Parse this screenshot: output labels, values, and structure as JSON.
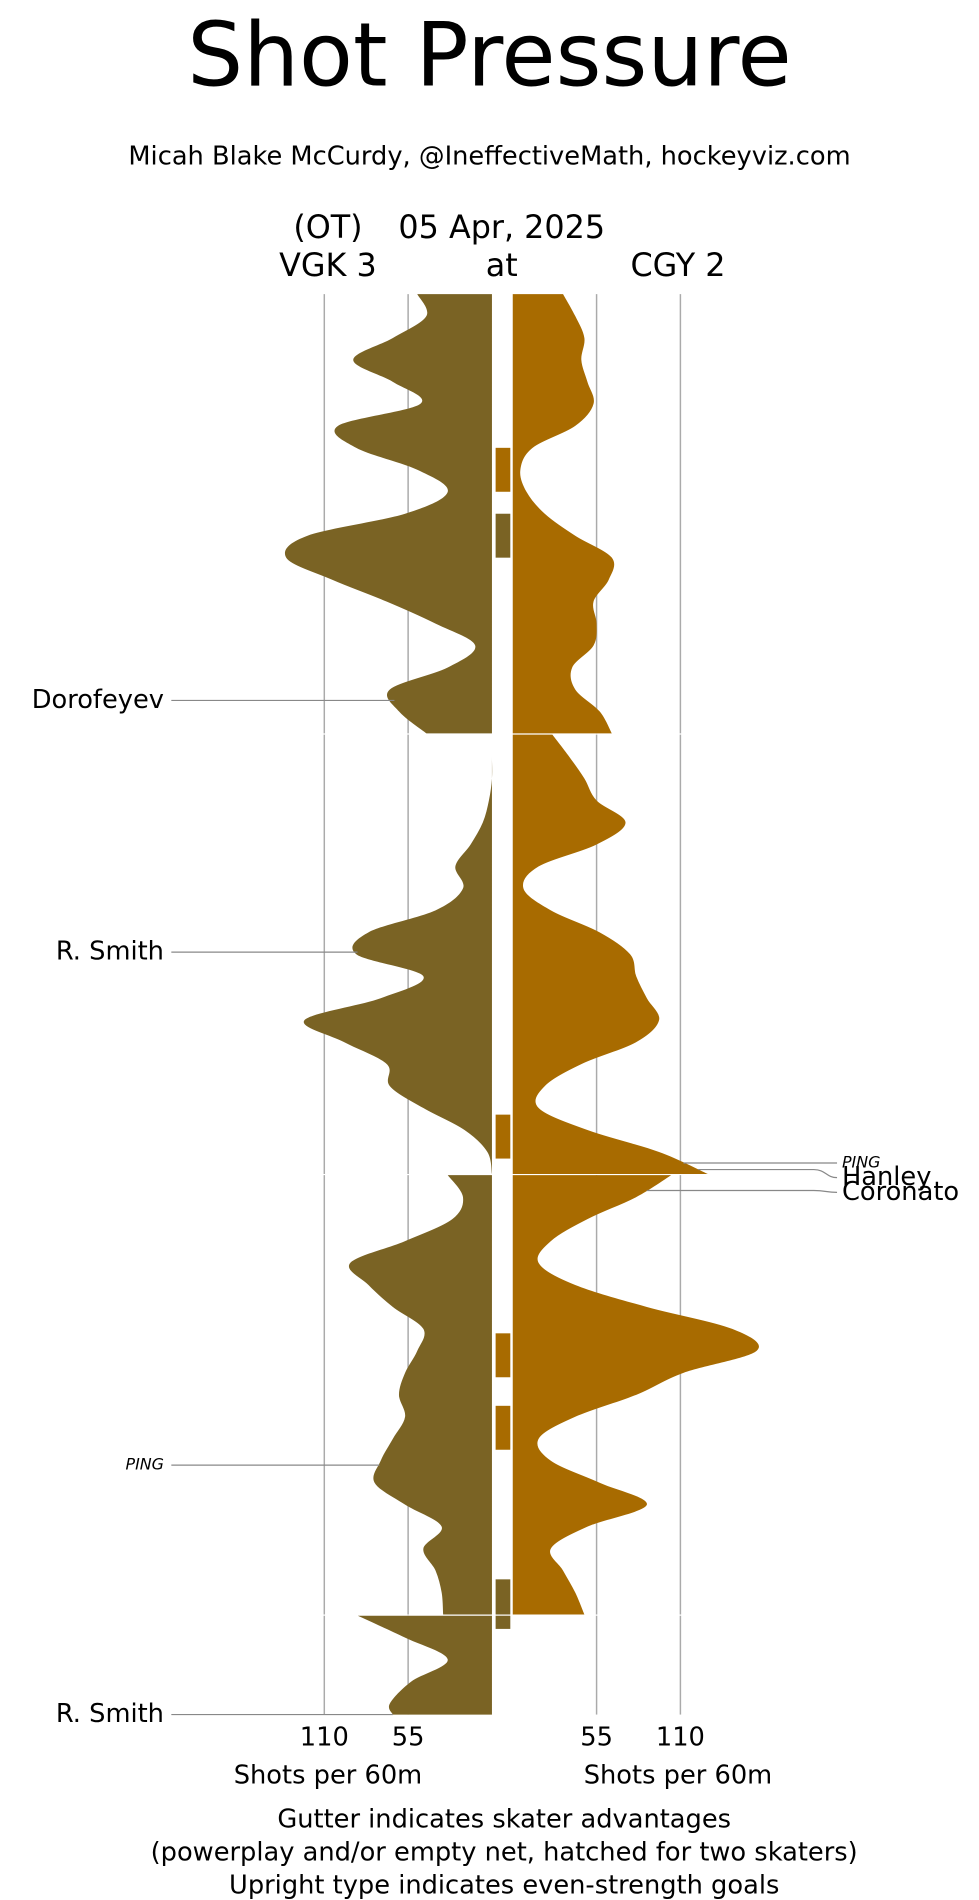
{
  "chart_data": {
    "type": "shot-pressure",
    "title": "Shot Pressure",
    "subtitle": "Micah Blake McCurdy, @IneffectiveMath, hockeyviz.com",
    "game_note": "(OT)",
    "date": "05 Apr, 2025",
    "away_label": "VGK 3",
    "at_label": "at",
    "home_label": "CGY 2",
    "x_axis_label": "Shots per 60m",
    "footer": [
      "Gutter indicates skater advantages",
      "(powerplay and/or empty net, hatched for two skaters)",
      "Upright type indicates even-strength goals"
    ],
    "xlim": [
      0,
      110
    ],
    "xticks": [
      55,
      110
    ],
    "x": [
      0,
      1,
      2,
      3,
      4,
      5,
      6,
      7,
      8,
      9,
      10,
      11,
      12,
      13,
      14,
      15,
      16,
      17,
      18,
      19,
      20,
      20,
      21,
      22,
      23,
      24,
      25,
      26,
      27,
      28,
      29,
      30,
      31,
      32,
      33,
      34,
      35,
      36,
      37,
      38,
      39,
      40,
      40,
      41,
      42,
      43,
      44,
      45,
      46,
      47,
      48,
      49,
      50,
      51,
      52,
      53,
      54,
      55,
      56,
      57,
      58,
      59,
      60,
      60,
      61,
      62,
      63,
      64,
      64.5
    ],
    "series": [
      {
        "team": "away",
        "color": "#7a6324",
        "values": [
          49,
          43,
          65,
          91,
          65,
          47,
          101,
          89,
          49,
          29,
          57,
          121,
          135,
          105,
          69,
          37,
          11,
          29,
          67,
          61,
          43,
          0,
          0,
          0,
          2,
          6,
          14,
          24,
          19,
          37,
          81,
          89,
          45,
          73,
          123,
          97,
          69,
          67,
          45,
          18,
          3,
          0,
          29,
          19,
          26,
          57,
          93,
          81,
          65,
          45,
          49,
          57,
          61,
          57,
          65,
          73,
          77,
          57,
          33,
          45,
          37,
          33,
          32,
          88,
          57,
          29,
          53,
          67,
          65
        ]
      },
      {
        "team": "home",
        "color": "#a86b00",
        "values": [
          33,
          41,
          47,
          45,
          49,
          53,
          41,
          13,
          5,
          9,
          21,
          41,
          65,
          63,
          53,
          55,
          53,
          39,
          41,
          57,
          65,
          26,
          37,
          47,
          55,
          74,
          55,
          17,
          7,
          25,
          57,
          77,
          81,
          88,
          96,
          81,
          45,
          21,
          17,
          49,
          96,
          128,
          104,
          81,
          49,
          25,
          17,
          41,
          88,
          144,
          160,
          112,
          81,
          41,
          17,
          25,
          57,
          88,
          49,
          25,
          33,
          41,
          47,
          0,
          0,
          0,
          0,
          0,
          0
        ]
      }
    ],
    "advantages": [
      {
        "team": "home",
        "start": 7.0,
        "end": 9.0
      },
      {
        "team": "away",
        "start": 10.0,
        "end": 12.0
      },
      {
        "team": "home",
        "start": 37.3,
        "end": 39.3
      },
      {
        "team": "home",
        "start": 47.2,
        "end": 49.2
      },
      {
        "team": "home",
        "start": 50.5,
        "end": 52.5
      },
      {
        "team": "away",
        "start": 58.4,
        "end": 60.6
      }
    ],
    "goals": [
      {
        "team": "away",
        "name": "Dorofeyev",
        "minute": 18.5,
        "even_strength": true
      },
      {
        "team": "away",
        "name": "R. Smith",
        "minute": 29.9,
        "even_strength": true
      },
      {
        "team": "home",
        "name": "PING",
        "minute": 39.5,
        "even_strength": false
      },
      {
        "team": "home",
        "name": "Hanley",
        "minute": 39.8,
        "even_strength": true
      },
      {
        "team": "home",
        "name": "Coronato",
        "minute": 40.7,
        "even_strength": true
      },
      {
        "team": "away",
        "name": "PING",
        "minute": 53.2,
        "even_strength": false
      },
      {
        "team": "away",
        "name": "R. Smith",
        "minute": 64.5,
        "even_strength": true
      }
    ]
  }
}
